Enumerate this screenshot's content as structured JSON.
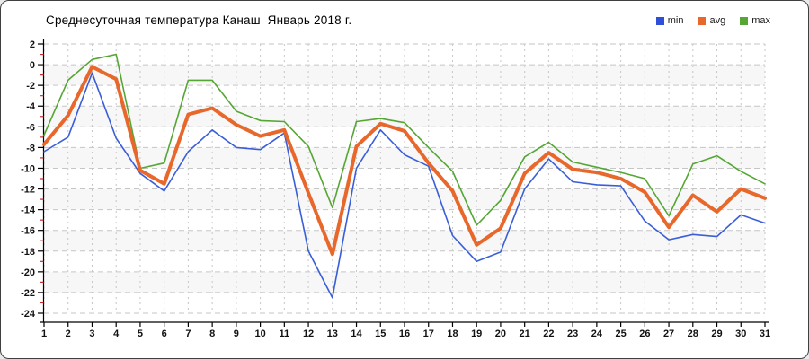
{
  "title": "Среднесуточная температура Канаш  Январь 2018 г.",
  "legend": [
    {
      "label": "min",
      "color": "#2f4fd8"
    },
    {
      "label": "avg",
      "color": "#e8672b"
    },
    {
      "label": "max",
      "color": "#55a633"
    }
  ],
  "chart_data": {
    "type": "line",
    "title": "Среднесуточная температура Канаш  Январь 2018 г.",
    "xlabel": "",
    "ylabel": "",
    "x": [
      1,
      2,
      3,
      4,
      5,
      6,
      7,
      8,
      9,
      10,
      11,
      12,
      13,
      14,
      15,
      16,
      17,
      18,
      19,
      20,
      21,
      22,
      23,
      24,
      25,
      26,
      27,
      28,
      29,
      30,
      31
    ],
    "series": [
      {
        "name": "min",
        "color": "#3a5ed8",
        "width": 1.6,
        "values": [
          -8.4,
          -7.0,
          -0.8,
          -7.1,
          -10.5,
          -12.2,
          -8.4,
          -6.3,
          -8.0,
          -8.2,
          -6.6,
          -18.0,
          -22.5,
          -10.0,
          -6.3,
          -8.7,
          -9.8,
          -16.5,
          -19.0,
          -18.1,
          -12.0,
          -9.1,
          -11.3,
          -11.6,
          -11.7,
          -15.1,
          -16.9,
          -16.4,
          -16.6,
          -14.5,
          -15.3
        ]
      },
      {
        "name": "avg",
        "color": "#e8672b",
        "width": 4,
        "values": [
          -7.7,
          -4.9,
          -0.2,
          -1.4,
          -10.2,
          -11.5,
          -4.8,
          -4.2,
          -5.8,
          -6.9,
          -6.3,
          -12.4,
          -18.3,
          -7.9,
          -5.7,
          -6.4,
          -9.5,
          -12.2,
          -17.4,
          -15.8,
          -10.5,
          -8.5,
          -10.1,
          -10.4,
          -11.0,
          -12.3,
          -15.7,
          -12.6,
          -14.2,
          -12.0,
          -12.9
        ]
      },
      {
        "name": "max",
        "color": "#55a633",
        "width": 1.6,
        "values": [
          -6.8,
          -1.5,
          0.5,
          1.0,
          -10.0,
          -9.5,
          -1.5,
          -1.5,
          -4.5,
          -5.4,
          -5.5,
          -7.9,
          -13.8,
          -5.5,
          -5.2,
          -5.6,
          -8.0,
          -10.3,
          -15.5,
          -13.1,
          -8.9,
          -7.5,
          -9.4,
          -9.9,
          -10.4,
          -11.0,
          -14.6,
          -9.6,
          -8.8,
          -10.3,
          -11.5
        ]
      }
    ],
    "ylim": [
      -24,
      2
    ],
    "ytick_step": 2,
    "y_ticks": [
      2,
      0,
      -2,
      -4,
      -6,
      -8,
      -10,
      -12,
      -14,
      -16,
      -18,
      -20,
      -22,
      -24
    ],
    "grid": true,
    "grid_style": "dashed",
    "plot_bands_alternate": true,
    "legend_position": "top-right",
    "colors": {
      "band_gray": "#f7f7f7",
      "grid": "#c6c6c6",
      "axis": "#000000",
      "minor_tick_red": "#cc2a2a",
      "tick_label": "#111111"
    }
  }
}
